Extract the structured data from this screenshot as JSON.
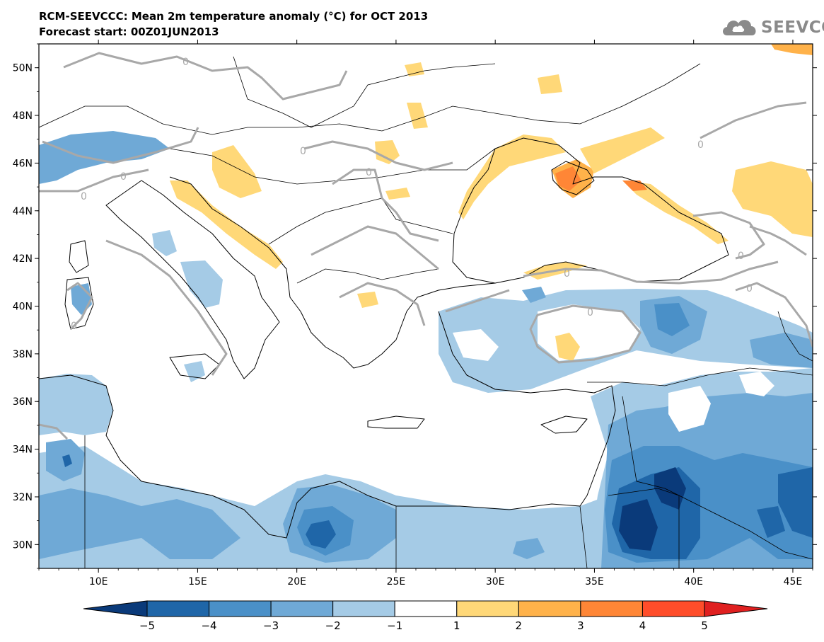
{
  "title": {
    "line1": "RCM-SEEVCCC: Mean 2m temperature anomaly (°C) for OCT 2013",
    "line2": "Forecast start: 00Z01JUN2013"
  },
  "logo": {
    "text": "SEEVCCC",
    "icon": "cloud-icon",
    "color": "#8a8a8a"
  },
  "map": {
    "lon_range": [
      7,
      46
    ],
    "lat_range": [
      29,
      51
    ],
    "x_ticks": [
      "10E",
      "15E",
      "20E",
      "25E",
      "30E",
      "35E",
      "40E",
      "45E"
    ],
    "y_ticks": [
      "50N",
      "48N",
      "46N",
      "44N",
      "42N",
      "40N",
      "38N",
      "36N",
      "34N",
      "32N",
      "30N"
    ],
    "contour_label": "0"
  },
  "colorbar": {
    "labels": [
      "-5",
      "-4",
      "-3",
      "-2",
      "-1",
      "1",
      "2",
      "3",
      "4",
      "5"
    ],
    "colors": [
      "#0a3a7a",
      "#1f66a8",
      "#4a90c8",
      "#6fa9d6",
      "#a5cbe6",
      "#ffffff",
      "#ffd878",
      "#ffb24a",
      "#ff8636",
      "#ff4d2a",
      "#e02020"
    ]
  },
  "colors": {
    "land_white": "#ffffff",
    "anom_m1": "#a5cbe6",
    "anom_m2": "#6fa9d6",
    "anom_m3": "#4a90c8",
    "anom_m4": "#1f66a8",
    "anom_m5": "#0a3a7a",
    "anom_p1": "#ffd878",
    "anom_p2": "#ffb24a",
    "anom_p3": "#ff8636",
    "contour": "#a8a8a8",
    "border": "#000000"
  }
}
